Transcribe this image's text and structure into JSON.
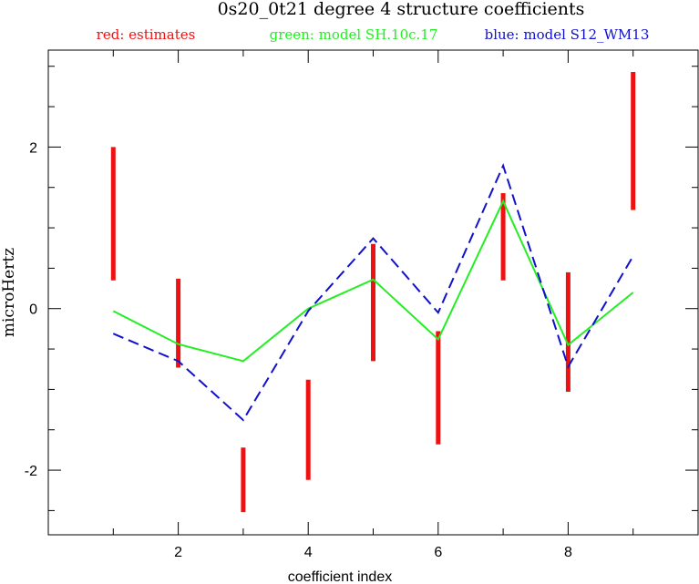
{
  "chart_data": {
    "type": "line",
    "title": "0s20_0t21 degree 4 structure coefficients",
    "xlabel": "coefficient index",
    "ylabel": "microHertz",
    "xlim": [
      0,
      10
    ],
    "ylim": [
      -2.8,
      3.2
    ],
    "x_ticks": [
      2,
      4,
      6,
      8
    ],
    "x_tick_labels": [
      "2",
      "4",
      "6",
      "8"
    ],
    "y_ticks": [
      -2,
      0,
      2
    ],
    "y_tick_labels": [
      "-2",
      "0",
      "2"
    ],
    "grid": false,
    "legend_position": "top",
    "legend": [
      {
        "text": "red: estimates",
        "color": "#ee1111"
      },
      {
        "text": "green: model SH.10c.17",
        "color": "#22ee22"
      },
      {
        "text": "blue: model S12_WM13",
        "color": "#1111cc"
      }
    ],
    "estimates": {
      "color": "#ee1111",
      "style": "error-bars",
      "x": [
        1,
        2,
        3,
        4,
        5,
        6,
        7,
        8,
        9
      ],
      "low": [
        0.35,
        -0.73,
        -2.52,
        -2.12,
        -0.65,
        -1.68,
        0.35,
        -1.03,
        1.22
      ],
      "high": [
        2.0,
        0.37,
        -1.72,
        -0.88,
        0.8,
        -0.28,
        1.43,
        0.45,
        2.93
      ]
    },
    "series": [
      {
        "color": "#22ee22",
        "dash": "solid",
        "x": [
          1,
          2,
          3,
          4,
          5,
          6,
          7,
          8,
          9
        ],
        "values": [
          -0.03,
          -0.44,
          -0.65,
          0.0,
          0.36,
          -0.38,
          1.33,
          -0.45,
          0.2
        ]
      },
      {
        "color": "#1111cc",
        "dash": "dashed",
        "x": [
          1,
          2,
          3,
          4,
          5,
          6,
          7,
          8,
          9
        ],
        "values": [
          -0.31,
          -0.65,
          -1.38,
          -0.03,
          0.87,
          -0.05,
          1.77,
          -0.72,
          0.65
        ]
      }
    ]
  }
}
